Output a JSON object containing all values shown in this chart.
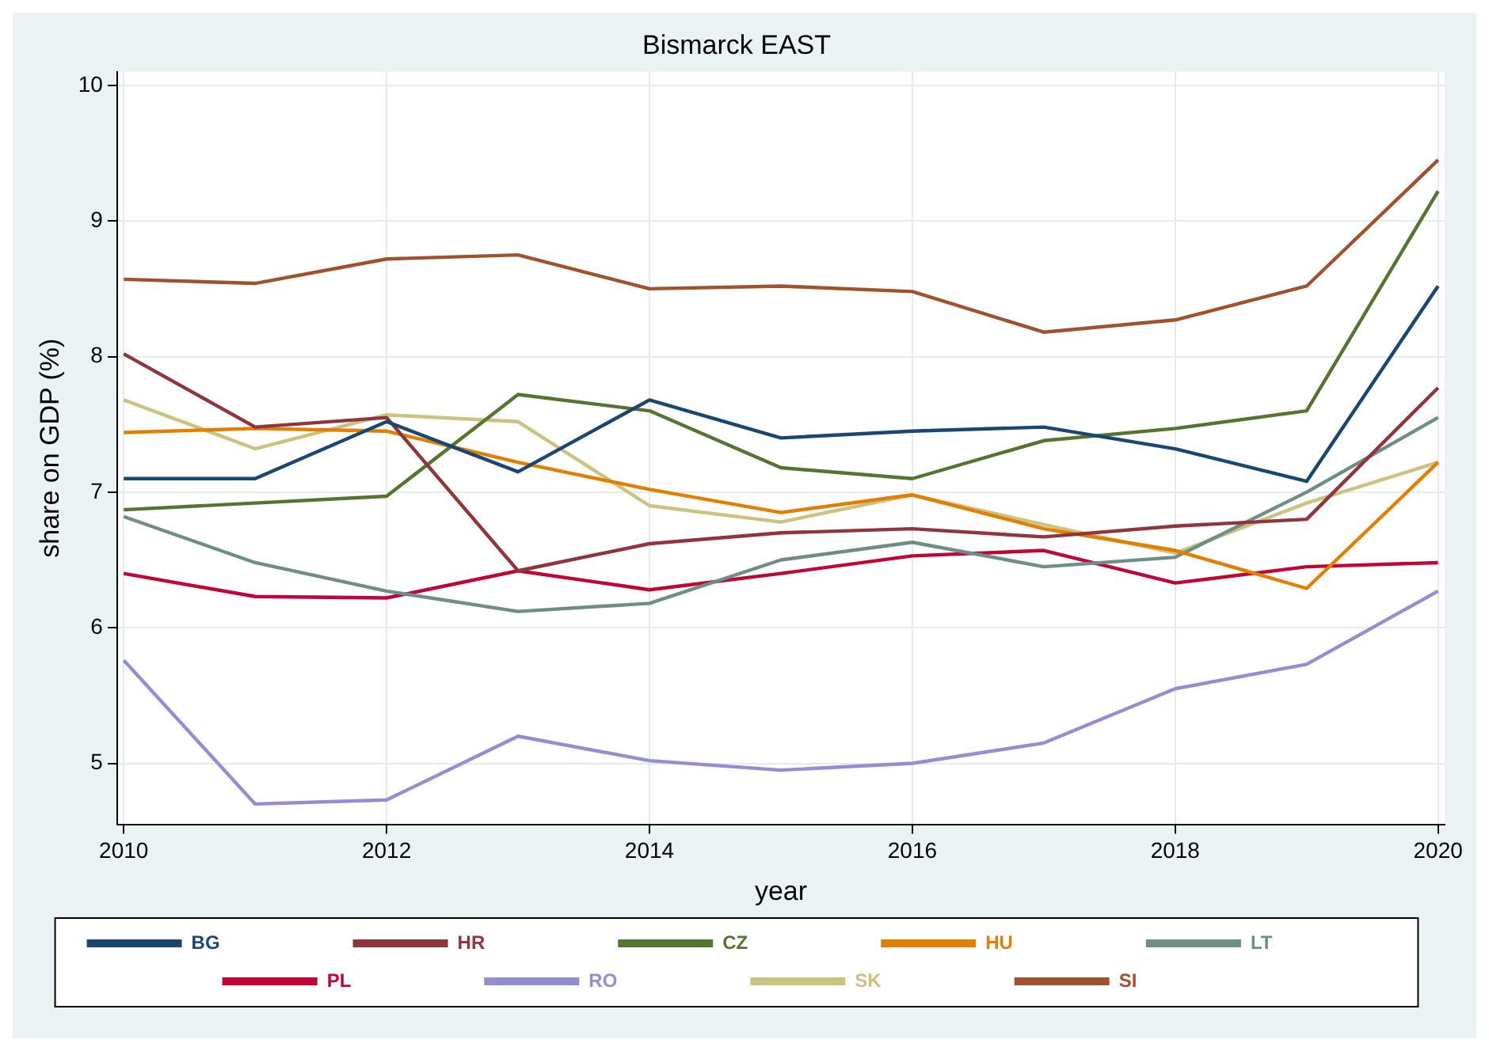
{
  "chart_data": {
    "type": "line",
    "title": "Bismarck EAST",
    "xlabel": "year",
    "ylabel": "share on GDP (%)",
    "x": [
      2010,
      2011,
      2012,
      2013,
      2014,
      2015,
      2016,
      2017,
      2018,
      2019,
      2020
    ],
    "series": [
      {
        "name": "BG",
        "color": "#1a476f",
        "values": [
          7.1,
          7.1,
          7.52,
          7.15,
          7.68,
          7.4,
          7.45,
          7.48,
          7.32,
          7.08,
          8.52
        ]
      },
      {
        "name": "HR",
        "color": "#90353b",
        "values": [
          8.02,
          7.48,
          7.55,
          6.42,
          6.62,
          6.7,
          6.73,
          6.67,
          6.75,
          6.8,
          7.77
        ]
      },
      {
        "name": "CZ",
        "color": "#55752f",
        "values": [
          6.87,
          6.92,
          6.97,
          7.72,
          7.6,
          7.18,
          7.1,
          7.38,
          7.47,
          7.6,
          9.22
        ]
      },
      {
        "name": "HU",
        "color": "#e37e00",
        "values": [
          7.44,
          7.47,
          7.45,
          7.22,
          7.02,
          6.85,
          6.98,
          6.73,
          6.57,
          6.29,
          7.22
        ]
      },
      {
        "name": "LT",
        "color": "#6e8e84",
        "values": [
          6.82,
          6.48,
          6.27,
          6.12,
          6.18,
          6.5,
          6.63,
          6.45,
          6.52,
          7.0,
          7.55
        ]
      },
      {
        "name": "PL",
        "color": "#c10534",
        "values": [
          6.4,
          6.23,
          6.22,
          6.42,
          6.28,
          6.4,
          6.53,
          6.57,
          6.33,
          6.45,
          6.48
        ]
      },
      {
        "name": "RO",
        "color": "#938dd2",
        "values": [
          5.76,
          4.7,
          4.73,
          5.2,
          5.02,
          4.95,
          5.0,
          5.15,
          5.55,
          5.73,
          6.27
        ]
      },
      {
        "name": "SK",
        "color": "#cac27e",
        "values": [
          7.68,
          7.32,
          7.57,
          7.52,
          6.9,
          6.78,
          6.98,
          6.76,
          6.55,
          6.92,
          7.22
        ]
      },
      {
        "name": "SI",
        "color": "#a0522d",
        "values": [
          8.57,
          8.54,
          8.72,
          8.75,
          8.5,
          8.52,
          8.48,
          8.18,
          8.27,
          8.52,
          9.45
        ]
      }
    ],
    "xlim": [
      2009.95,
      2020.05
    ],
    "xticks": [
      2010,
      2012,
      2014,
      2016,
      2018,
      2020
    ],
    "ylim": [
      4.55,
      10.1
    ],
    "yticks": [
      5,
      6,
      7,
      8,
      9,
      10
    ],
    "grid": true,
    "legend": "bottom",
    "marker": "none",
    "line_style": "solid"
  }
}
